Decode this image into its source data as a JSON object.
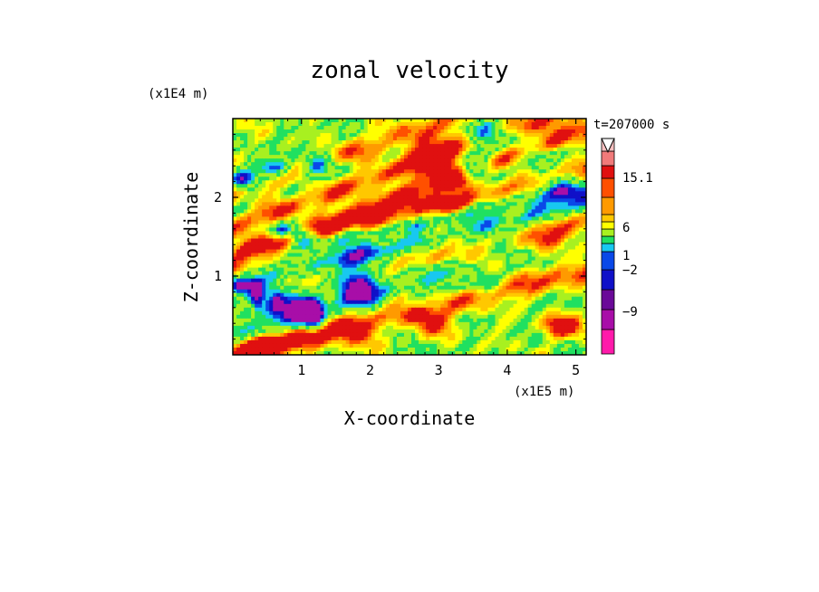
{
  "chart_data": {
    "type": "heatmap",
    "title": "zonal velocity",
    "xlabel": "X-coordinate",
    "ylabel": "Z-coordinate",
    "x_unit": "(x1E5 m)",
    "y_unit": "(x1E4 m)",
    "time_label": "t=207000 s",
    "xlim": [
      0,
      5.15
    ],
    "ylim": [
      0,
      3.0
    ],
    "x_ticks": [
      "1",
      "2",
      "3",
      "4",
      "5"
    ],
    "y_ticks": [
      "1",
      "2"
    ],
    "colorbar": {
      "labels": [
        "15.1",
        "6",
        "1",
        "−2",
        "−9"
      ],
      "levels": [
        {
          "color": "#ff1aaa"
        },
        {
          "color": "#a80ea8"
        },
        {
          "color": "#6a0a98"
        },
        {
          "color": "#1010c8"
        },
        {
          "color": "#0a48e8"
        },
        {
          "color": "#18c8f0"
        },
        {
          "color": "#20e060"
        },
        {
          "color": "#a8f020"
        },
        {
          "color": "#ffff00"
        },
        {
          "color": "#ffc800"
        },
        {
          "color": "#ff9a00"
        },
        {
          "color": "#ff5000"
        },
        {
          "color": "#e01010"
        },
        {
          "color": "#f07a7a"
        },
        {
          "color": "#f8c0c0"
        },
        {
          "color": "#ffffff"
        }
      ]
    }
  }
}
